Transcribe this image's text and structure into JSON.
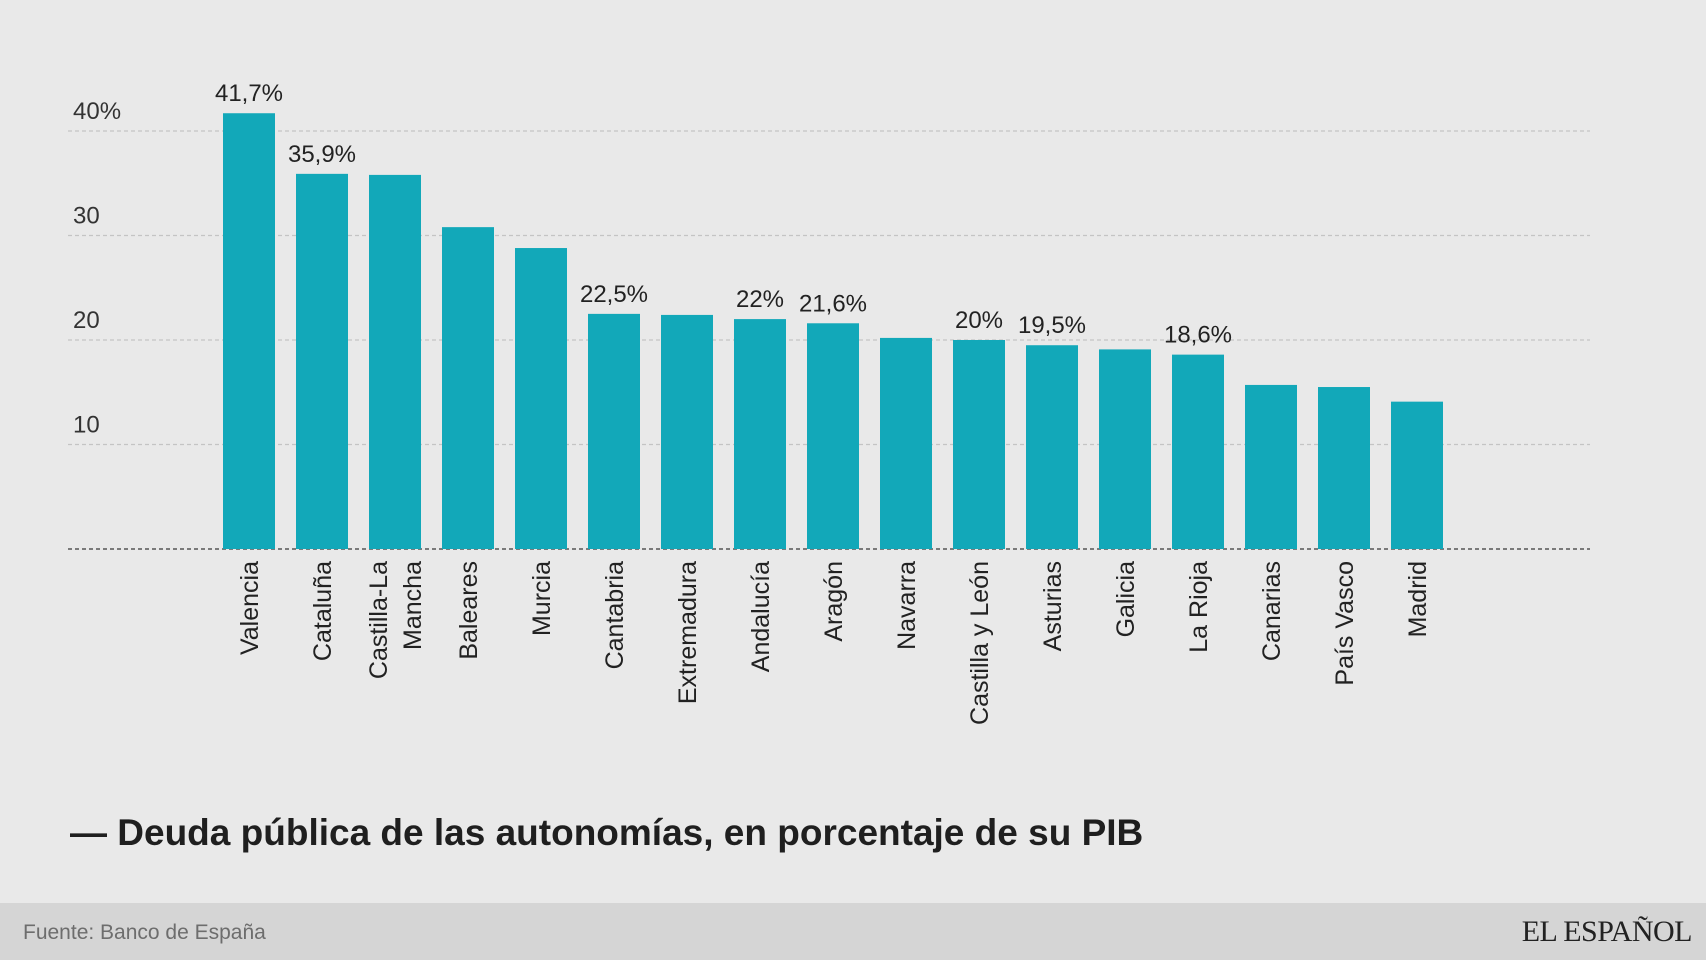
{
  "chart_data": {
    "type": "bar",
    "title": "— Deuda pública de las autonomías, en porcentaje de su PIB",
    "categories": [
      "Valencia",
      "Cataluña",
      "Castilla-La Mancha",
      "Baleares",
      "Murcia",
      "Cantabria",
      "Extremadura",
      "Andalucía",
      "Aragón",
      "Navarra",
      "Castilla y León",
      "Asturias",
      "Galicia",
      "La Rioja",
      "Canarias",
      "País Vasco",
      "Madrid"
    ],
    "category_lines": [
      [
        "Valencia"
      ],
      [
        "Cataluña"
      ],
      [
        "Castilla-La",
        "Mancha"
      ],
      [
        "Baleares"
      ],
      [
        "Murcia"
      ],
      [
        "Cantabria"
      ],
      [
        "Extremadura"
      ],
      [
        "Andalucía"
      ],
      [
        "Aragón"
      ],
      [
        "Navarra"
      ],
      [
        "Castilla y León"
      ],
      [
        "Asturias"
      ],
      [
        "Galicia"
      ],
      [
        "La Rioja"
      ],
      [
        "Canarias"
      ],
      [
        "País Vasco"
      ],
      [
        "Madrid"
      ]
    ],
    "values": [
      41.7,
      35.9,
      35.8,
      30.8,
      28.8,
      22.5,
      22.4,
      22.0,
      21.6,
      20.2,
      20.0,
      19.5,
      19.1,
      18.6,
      15.7,
      15.5,
      14.1
    ],
    "data_labels": [
      "41,7%",
      "35,9%",
      null,
      null,
      null,
      "22,5%",
      null,
      "22%",
      "21,6%",
      null,
      "20%",
      "19,5%",
      null,
      "18,6%",
      null,
      null,
      null
    ],
    "yticks": [
      10,
      20,
      30,
      40
    ],
    "ytick_labels": [
      "10",
      "20",
      "30",
      "40%"
    ],
    "ylim": [
      0,
      45
    ],
    "xlabel": "",
    "ylabel": "",
    "grid": true,
    "grid_style": "dashed",
    "bar_color": "#12a8b9"
  },
  "footer": {
    "source": "Fuente: Banco de España",
    "brand": "EL ESPAÑOL"
  }
}
